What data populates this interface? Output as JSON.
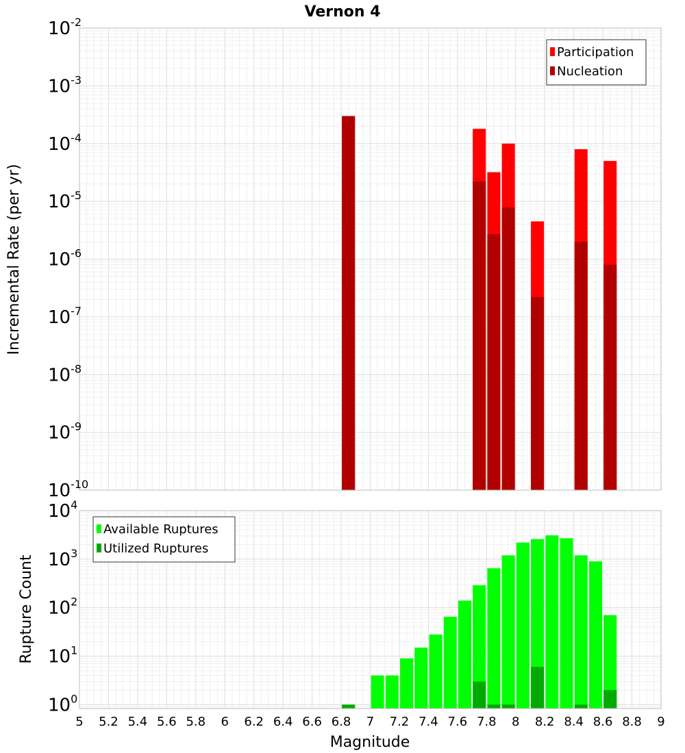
{
  "chart_data": [
    {
      "type": "bar",
      "title": "Vernon 4",
      "ylabel": "Incremental Rate (per yr)",
      "xlabel": "",
      "yscale": "log",
      "ylim": [
        "1e-10",
        "1e-2"
      ],
      "y_ticks": [
        {
          "base": "10",
          "exp": "-10"
        },
        {
          "base": "10",
          "exp": "-9"
        },
        {
          "base": "10",
          "exp": "-8"
        },
        {
          "base": "10",
          "exp": "-7"
        },
        {
          "base": "10",
          "exp": "-6"
        },
        {
          "base": "10",
          "exp": "-5"
        },
        {
          "base": "10",
          "exp": "-4"
        },
        {
          "base": "10",
          "exp": "-3"
        },
        {
          "base": "10",
          "exp": "-2"
        }
      ],
      "grid": true,
      "legend_position": "top-right",
      "series": [
        {
          "name": "Participation",
          "color": "#ff0000",
          "points": [
            [
              6.85,
              0.0003
            ],
            [
              7.75,
              0.00018
            ],
            [
              7.85,
              3.2e-05
            ],
            [
              7.95,
              0.0001
            ],
            [
              8.15,
              4.5e-06
            ],
            [
              8.45,
              8e-05
            ],
            [
              8.65,
              5e-05
            ]
          ]
        },
        {
          "name": "Nucleation",
          "color": "#b00000",
          "points": [
            [
              6.85,
              0.0003
            ],
            [
              7.75,
              2.2e-05
            ],
            [
              7.85,
              2.7e-06
            ],
            [
              7.95,
              7.8e-06
            ],
            [
              8.15,
              2.2e-07
            ],
            [
              8.45,
              2e-06
            ],
            [
              8.65,
              8e-07
            ]
          ]
        }
      ]
    },
    {
      "type": "bar",
      "title": "",
      "ylabel": "Rupture Count",
      "xlabel": "Magnitude",
      "yscale": "log",
      "xlim": [
        5,
        9
      ],
      "x_ticks": [
        "5",
        "5.2",
        "5.4",
        "5.6",
        "5.8",
        "6",
        "6.2",
        "6.4",
        "6.6",
        "6.8",
        "7",
        "7.2",
        "7.4",
        "7.6",
        "7.8",
        "8",
        "8.2",
        "8.4",
        "8.6",
        "8.8",
        "9"
      ],
      "y_ticks": [
        {
          "base": "10",
          "exp": "0"
        },
        {
          "base": "10",
          "exp": "1"
        },
        {
          "base": "10",
          "exp": "2"
        },
        {
          "base": "10",
          "exp": "3"
        },
        {
          "base": "10",
          "exp": "4"
        }
      ],
      "grid": true,
      "legend_position": "top-left",
      "series": [
        {
          "name": "Available Ruptures",
          "color": "#00ff00",
          "points": [
            [
              6.85,
              1
            ],
            [
              7.05,
              4
            ],
            [
              7.15,
              4
            ],
            [
              7.25,
              9
            ],
            [
              7.35,
              15
            ],
            [
              7.45,
              28
            ],
            [
              7.55,
              65
            ],
            [
              7.65,
              140
            ],
            [
              7.75,
              290
            ],
            [
              7.85,
              650
            ],
            [
              7.95,
              1200
            ],
            [
              8.05,
              2200
            ],
            [
              8.15,
              2600
            ],
            [
              8.25,
              3100
            ],
            [
              8.35,
              2700
            ],
            [
              8.45,
              1200
            ],
            [
              8.55,
              900
            ],
            [
              8.65,
              70
            ]
          ]
        },
        {
          "name": "Utilized Ruptures",
          "color": "#00aa00",
          "points": [
            [
              6.85,
              1
            ],
            [
              7.75,
              3
            ],
            [
              7.85,
              1
            ],
            [
              7.95,
              1
            ],
            [
              8.15,
              6
            ],
            [
              8.45,
              1
            ],
            [
              8.65,
              2
            ]
          ]
        }
      ]
    }
  ]
}
